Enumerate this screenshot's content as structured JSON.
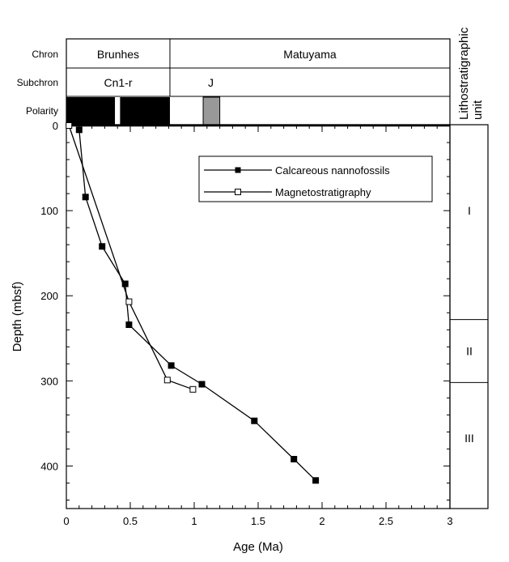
{
  "chart_data": {
    "type": "scatter",
    "xlabel": "Age (Ma)",
    "ylabel": "Depth (mbsf)",
    "xlim": [
      0,
      3
    ],
    "ylim": [
      0,
      450
    ],
    "y_inverted": true,
    "x_ticks": [
      0,
      0.5,
      1,
      1.5,
      2,
      2.5,
      3
    ],
    "x_tick_labels": [
      "0",
      "0.5",
      "1",
      "1.5",
      "2",
      "2.5",
      "3"
    ],
    "y_ticks": [
      0,
      100,
      200,
      300,
      400
    ],
    "y_tick_labels": [
      "0",
      "100",
      "200",
      "300",
      "400"
    ],
    "grid": false,
    "legend_position": "top-right",
    "series": [
      {
        "name": "Calcareous nannofossils",
        "marker": "filled-square",
        "color": "#000000",
        "x": [
          0.1,
          0.15,
          0.28,
          0.46,
          0.49,
          0.82,
          1.06,
          1.47,
          1.78,
          1.95
        ],
        "y": [
          5,
          84,
          142,
          186,
          234,
          282,
          304,
          347,
          392,
          417
        ]
      },
      {
        "name": "Magnetostratigraphy",
        "marker": "open-square",
        "color": "#000000",
        "x": [
          0.02,
          0.49,
          0.79,
          0.99
        ],
        "y": [
          0,
          207,
          299,
          310
        ]
      }
    ]
  },
  "header": {
    "chron_label": "Chron",
    "subchron_label": "Subchron",
    "polarity_label": "Polarity",
    "chrons": [
      {
        "name": "Brunhes",
        "from": 0,
        "to": 0.81
      },
      {
        "name": "Matuyama",
        "from": 0.81,
        "to": 3
      }
    ],
    "subchrons": [
      {
        "name": "Cn1-r",
        "from": 0,
        "to": 0.81
      },
      {
        "name": "J",
        "from": 0.81,
        "to": 1.15
      }
    ],
    "polarity_blocks": [
      {
        "from": 0,
        "to": 0.38,
        "color": "#000000"
      },
      {
        "from": 0.42,
        "to": 0.81,
        "color": "#000000"
      },
      {
        "from": 1.07,
        "to": 1.2,
        "color": "#999999"
      }
    ]
  },
  "lithology": {
    "title_line1": "Lithostratigraphic",
    "title_line2": "unit",
    "units": [
      {
        "name": "I",
        "top": 0,
        "bottom": 228
      },
      {
        "name": "II",
        "top": 228,
        "bottom": 302
      },
      {
        "name": "III",
        "top": 302,
        "bottom": 450
      }
    ]
  }
}
